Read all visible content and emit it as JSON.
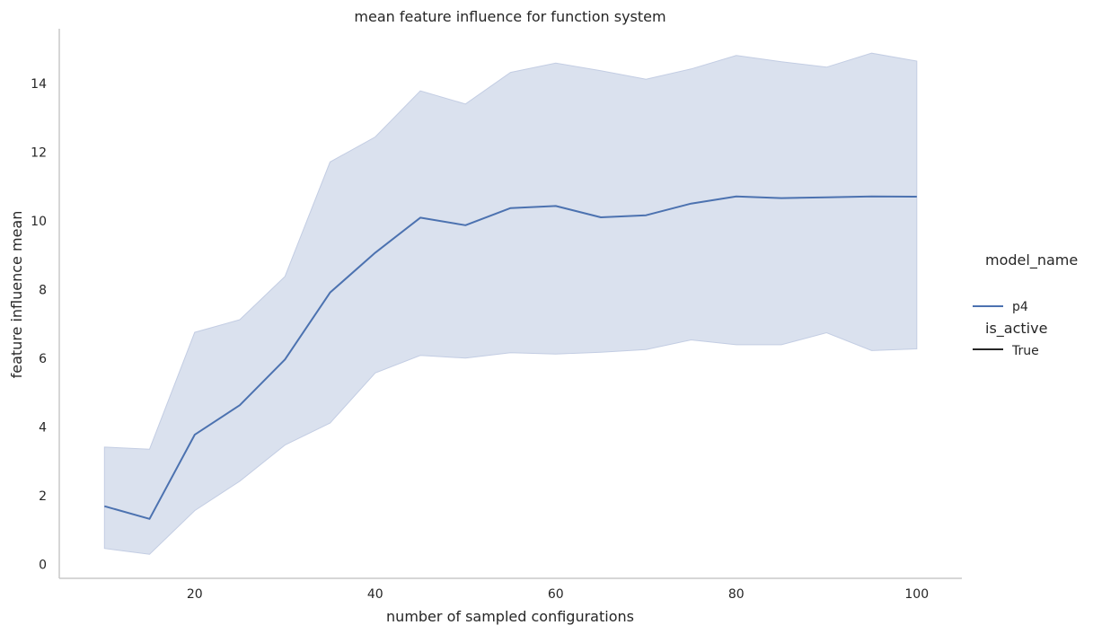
{
  "chart_data": {
    "type": "line",
    "title": "mean feature influence for function system",
    "xlabel": "number of sampled configurations",
    "ylabel": "feature influence mean",
    "xlim": [
      5,
      105
    ],
    "ylim": [
      -0.4,
      15.6
    ],
    "xticks": [
      20,
      40,
      60,
      80,
      100
    ],
    "yticks": [
      0,
      2,
      4,
      6,
      8,
      10,
      12,
      14
    ],
    "grid": false,
    "legend_position": "right",
    "colors": {
      "line": "#4c72b0",
      "band": "#dae1ee",
      "band_edge": "#c3cde3",
      "axis": "#c8c8c8",
      "legend_style_line": "#262626"
    },
    "legend": {
      "hue_title": "model_name",
      "hue_entries": [
        "p4"
      ],
      "style_title": "is_active",
      "style_entries": [
        "True"
      ]
    },
    "series": [
      {
        "name": "p4",
        "x": [
          10,
          15,
          20,
          25,
          30,
          35,
          40,
          45,
          50,
          55,
          60,
          65,
          70,
          75,
          80,
          85,
          90,
          95,
          100
        ],
        "y": [
          1.7,
          1.33,
          3.78,
          4.64,
          5.97,
          7.92,
          9.08,
          10.1,
          9.88,
          10.38,
          10.44,
          10.11,
          10.17,
          10.51,
          10.72,
          10.67,
          10.69,
          10.72,
          10.71
        ],
        "y_lower": [
          0.47,
          0.3,
          1.57,
          2.43,
          3.48,
          4.12,
          5.58,
          6.09,
          6.01,
          6.17,
          6.13,
          6.18,
          6.26,
          6.54,
          6.4,
          6.4,
          6.75,
          6.23,
          6.28
        ],
        "y_upper": [
          3.42,
          3.36,
          6.76,
          7.13,
          8.39,
          11.72,
          12.45,
          13.79,
          13.41,
          14.33,
          14.6,
          14.38,
          14.13,
          14.43,
          14.82,
          14.64,
          14.48,
          14.89,
          14.66
        ]
      }
    ]
  }
}
